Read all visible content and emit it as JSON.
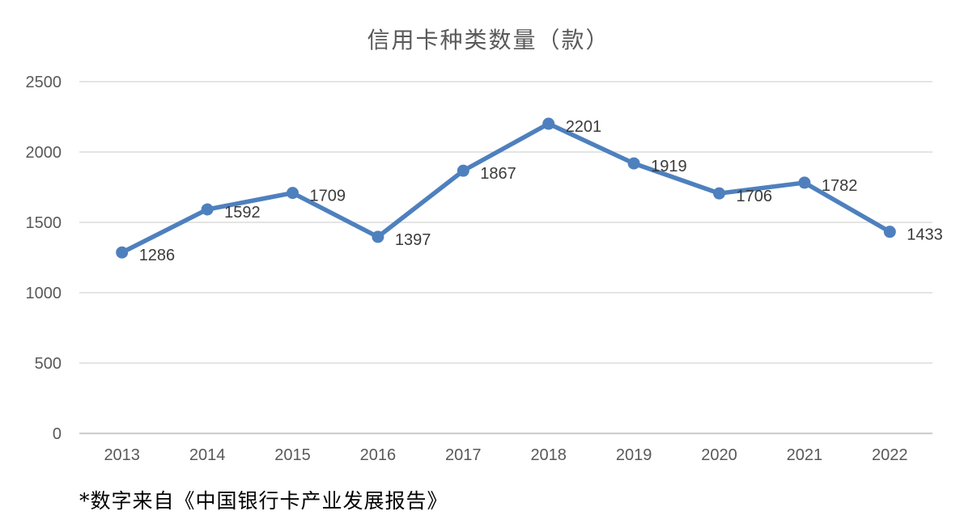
{
  "chart_data": {
    "type": "line",
    "title": "信用卡种类数量（款）",
    "categories": [
      "2013",
      "2014",
      "2015",
      "2016",
      "2017",
      "2018",
      "2019",
      "2020",
      "2021",
      "2022"
    ],
    "values": [
      1286,
      1592,
      1709,
      1397,
      1867,
      2201,
      1919,
      1706,
      1782,
      1433
    ],
    "data_labels": [
      1286,
      1592,
      1709,
      1397,
      1867,
      2201,
      1919,
      1706,
      1782,
      1433
    ],
    "yticks": [
      0,
      500,
      1000,
      1500,
      2000,
      2500
    ],
    "ylim": [
      0,
      2500
    ],
    "xlabel": "",
    "ylabel": "",
    "grid": true,
    "legend": "none",
    "colors": {
      "line": "#4E80BE",
      "marker": "#4E80BE",
      "gridline": "#DCDCDC",
      "axis_line": "#CFCFCF",
      "tick_text": "#595959",
      "data_label_text": "#3B3B3B",
      "title_text": "#595959",
      "footnote_text": "#000000"
    }
  },
  "footnote": "*数字来自《中国银行卡产业发展报告》"
}
